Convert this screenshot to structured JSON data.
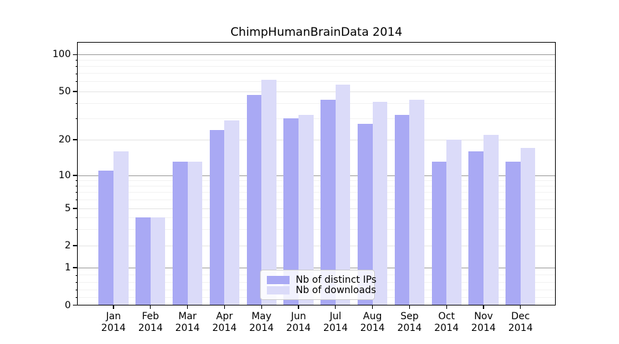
{
  "title": "ChimpHumanBrainData 2014",
  "chart_data": {
    "type": "bar",
    "categories": [
      "Jan",
      "Feb",
      "Mar",
      "Apr",
      "May",
      "Jun",
      "Jul",
      "Aug",
      "Sep",
      "Oct",
      "Nov",
      "Dec"
    ],
    "category_year": "2014",
    "series": [
      {
        "name": "Nb of distinct IPs",
        "color": "#a9a9f4",
        "values": [
          11,
          4,
          13,
          24,
          47,
          30,
          43,
          27,
          32,
          13,
          16,
          13
        ]
      },
      {
        "name": "Nb of downloads",
        "color": "#dbdbf9",
        "values": [
          16,
          4,
          13,
          29,
          62,
          32,
          57,
          41,
          43,
          20,
          22,
          17
        ]
      }
    ],
    "yscale": "symlog",
    "y_major_ticks": [
      0,
      1,
      2,
      5,
      10,
      20,
      50,
      100
    ],
    "y_minor_ticks": [
      0.2,
      0.4,
      0.6,
      0.8,
      3,
      4,
      6,
      7,
      8,
      9,
      30,
      40,
      60,
      70,
      80,
      90
    ],
    "ylim": [
      0,
      130
    ],
    "grid": true,
    "legend_position": "lower-center",
    "colors": {
      "grid_decade": "#9a9a9a",
      "grid_major": "#e4e4e4",
      "grid_minor": "#f2f2f2",
      "spine": "#000000",
      "background": "#ffffff"
    }
  }
}
